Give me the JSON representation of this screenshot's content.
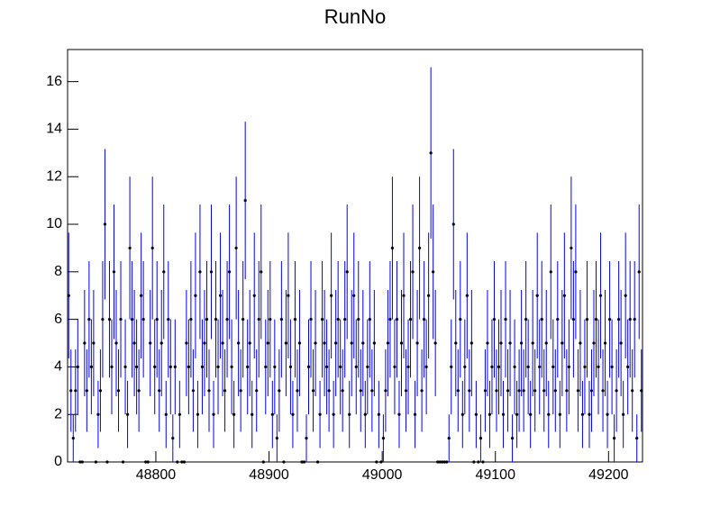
{
  "chart_data": {
    "type": "histogram",
    "title": "RunNo",
    "bins": [
      48722,
      48724,
      48726,
      48728,
      48730,
      48732,
      48734,
      48736,
      48738,
      48740,
      48742,
      48744,
      48746,
      48748,
      48750,
      48752,
      48754,
      48756,
      48758,
      48760,
      48762,
      48764,
      48766,
      48768,
      48770,
      48772,
      48774,
      48776,
      48778,
      48780,
      48782,
      48784,
      48786,
      48788,
      48790,
      48792,
      48794,
      48796,
      48798,
      48800,
      48802,
      48804,
      48806,
      48808,
      48810,
      48812,
      48814,
      48816,
      48818,
      48820,
      48822,
      48824,
      48826,
      48828,
      48830,
      48832,
      48834,
      48836,
      48838,
      48840,
      48842,
      48844,
      48846,
      48848,
      48850,
      48852,
      48854,
      48856,
      48858,
      48860,
      48862,
      48864,
      48866,
      48868,
      48870,
      48872,
      48874,
      48876,
      48878,
      48880,
      48882,
      48884,
      48886,
      48888,
      48890,
      48892,
      48894,
      48896,
      48898,
      48900,
      48902,
      48904,
      48906,
      48908,
      48910,
      48912,
      48914,
      48916,
      48918,
      48920,
      48922,
      48924,
      48926,
      48928,
      48930,
      48932,
      48934,
      48936,
      48938,
      48940,
      48942,
      48944,
      48946,
      48948,
      48950,
      48952,
      48954,
      48956,
      48958,
      48960,
      48962,
      48964,
      48966,
      48968,
      48970,
      48972,
      48974,
      48976,
      48978,
      48980,
      48982,
      48984,
      48986,
      48988,
      48990,
      48992,
      48994,
      48996,
      48998,
      49000,
      49002,
      49004,
      49006,
      49008,
      49010,
      49012,
      49014,
      49016,
      49018,
      49020,
      49022,
      49024,
      49026,
      49028,
      49030,
      49032,
      49034,
      49036,
      49038,
      49040,
      49042,
      49044,
      49046,
      49048,
      49050,
      49052,
      49054,
      49056,
      49058,
      49060,
      49062,
      49064,
      49066,
      49068,
      49070,
      49072,
      49074,
      49076,
      49078,
      49080,
      49082,
      49084,
      49086,
      49088,
      49090,
      49092,
      49094,
      49096,
      49098,
      49100,
      49102,
      49104,
      49106,
      49108,
      49110,
      49112,
      49114,
      49116,
      49118,
      49120,
      49122,
      49124,
      49126,
      49128,
      49130,
      49132,
      49134,
      49136,
      49138,
      49140,
      49142,
      49144,
      49146,
      49148,
      49150,
      49152,
      49154,
      49156,
      49158,
      49160,
      49162,
      49164,
      49166,
      49168,
      49170,
      49172,
      49174,
      49176,
      49178,
      49180,
      49182,
      49184,
      49186,
      49188,
      49190,
      49192,
      49194,
      49196,
      49198,
      49200,
      49202,
      49204,
      49206,
      49208,
      49210,
      49212,
      49214,
      49216,
      49218,
      49220,
      49222,
      49224,
      49226,
      49228,
      49230
    ],
    "values": [
      7,
      3,
      1,
      3,
      4,
      0,
      0,
      5,
      3,
      6,
      4,
      5,
      0,
      2,
      3,
      6,
      10,
      0,
      6,
      4,
      8,
      5,
      3,
      6,
      0,
      4,
      2,
      9,
      6,
      5,
      4,
      3,
      7,
      6,
      0,
      0,
      5,
      9,
      4,
      6,
      3,
      5,
      8,
      2,
      6,
      4,
      1,
      4,
      0,
      2,
      0,
      0,
      5,
      4,
      6,
      3,
      7,
      2,
      8,
      4,
      5,
      6,
      3,
      8,
      2,
      6,
      4,
      7,
      5,
      3,
      6,
      8,
      4,
      2,
      9,
      5,
      3,
      6,
      11,
      4,
      5,
      2,
      7,
      3,
      6,
      8,
      0,
      4,
      5,
      6,
      2,
      4,
      1,
      3,
      6,
      0,
      5,
      7,
      4,
      2,
      6,
      3,
      5,
      0,
      0,
      1,
      4,
      6,
      3,
      5,
      0,
      2,
      6,
      5,
      4,
      3,
      7,
      2,
      5,
      6,
      4,
      3,
      6,
      8,
      2,
      5,
      7,
      4,
      6,
      3,
      5,
      2,
      4,
      6,
      3,
      5,
      0,
      2,
      0,
      1,
      3,
      5,
      6,
      9,
      4,
      6,
      2,
      5,
      7,
      3,
      4,
      6,
      8,
      2,
      5,
      9,
      3,
      6,
      4,
      7,
      13,
      8,
      5,
      0,
      0,
      0,
      0,
      0,
      1,
      4,
      10,
      5,
      3,
      6,
      2,
      4,
      7,
      3,
      5,
      0,
      2,
      0,
      1,
      0,
      3,
      5,
      2,
      4,
      6,
      3,
      4,
      5,
      2,
      6,
      3,
      5,
      1,
      4,
      2,
      3,
      5,
      3,
      6,
      4,
      2,
      5,
      3,
      7,
      4,
      6,
      3,
      5,
      2,
      8,
      4,
      3,
      6,
      2,
      5,
      7,
      3,
      4,
      9,
      6,
      8,
      3,
      5,
      2,
      4,
      6,
      2,
      3,
      5,
      6,
      4,
      7,
      3,
      5,
      2,
      6,
      4,
      1,
      3,
      6,
      5,
      2,
      7,
      4,
      6,
      3,
      6,
      1,
      8,
      3
    ],
    "color": "#0000ff",
    "marker_color": "#000000",
    "xlim": [
      48722,
      49230
    ],
    "xticks": [
      48800,
      48900,
      49000,
      49100,
      49200
    ],
    "ylim": [
      0,
      17.35
    ],
    "yticks": [
      0,
      2,
      4,
      6,
      8,
      10,
      12,
      14,
      16
    ]
  }
}
